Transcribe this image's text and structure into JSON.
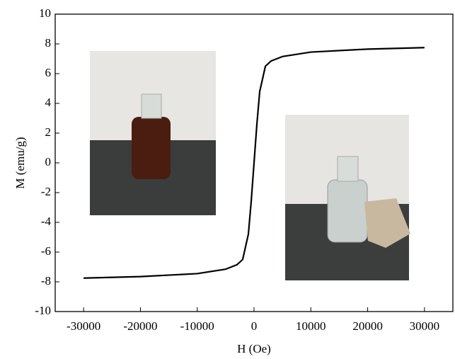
{
  "chart_data": {
    "type": "line",
    "x_label": "H (Oe)",
    "y_label": "M (emu/g)",
    "x": [
      -30000,
      -20000,
      -10000,
      -5000,
      -3000,
      -2000,
      -1000,
      -500,
      0,
      500,
      1000,
      2000,
      3000,
      5000,
      10000,
      20000,
      30000
    ],
    "values": [
      -7.75,
      -7.65,
      -7.45,
      -7.15,
      -6.85,
      -6.5,
      -4.8,
      -2.6,
      0,
      2.6,
      4.8,
      6.5,
      6.85,
      7.15,
      7.45,
      7.65,
      7.75
    ],
    "color": "#000000",
    "xlim": [
      -35000,
      35000
    ],
    "ylim": [
      -10,
      10
    ],
    "xticks": [
      -30000,
      -20000,
      -10000,
      0,
      10000,
      20000,
      30000
    ],
    "yticks": [
      -10,
      -8,
      -6,
      -4,
      -2,
      0,
      2,
      4,
      6,
      8,
      10
    ]
  }
}
